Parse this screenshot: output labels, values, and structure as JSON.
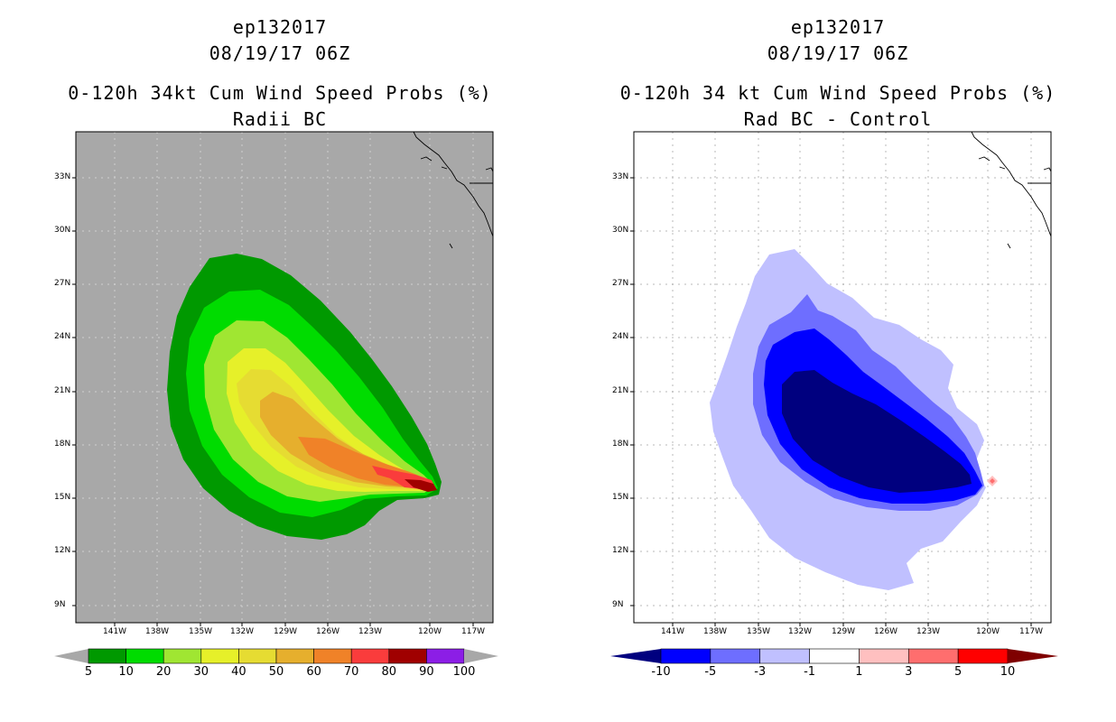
{
  "chart_data": [
    {
      "type": "heatmap",
      "panel": "left",
      "title_lines": [
        "ep132017",
        "08/19/17 06Z",
        "0-120h 34kt Cum Wind Speed Probs (%)",
        "Radii BC"
      ],
      "xticks": [
        "141W",
        "138W",
        "135W",
        "132W",
        "129W",
        "126W",
        "123W",
        "120W",
        "117W"
      ],
      "yticks": [
        "33N",
        "30N",
        "27N",
        "24N",
        "21N",
        "18N",
        "15N",
        "12N",
        "9N"
      ],
      "background_color": "#a8a8a8",
      "colorbar": {
        "levels": [
          "5",
          "10",
          "20",
          "30",
          "40",
          "50",
          "60",
          "70",
          "80",
          "90",
          "100"
        ],
        "colors": [
          "#009900",
          "#00dc00",
          "#a0e632",
          "#e6f029",
          "#e6dc32",
          "#e6af2d",
          "#f08228",
          "#fa3c3c",
          "#a00000",
          "#8c1ee6"
        ]
      },
      "contours": [
        {
          "level": 5,
          "color": "#009900"
        },
        {
          "level": 10,
          "color": "#00dc00"
        },
        {
          "level": 20,
          "color": "#a0e632"
        },
        {
          "level": 30,
          "color": "#e6f029"
        },
        {
          "level": 40,
          "color": "#e6dc32"
        },
        {
          "level": 50,
          "color": "#e6af2d"
        },
        {
          "level": 60,
          "color": "#f08228"
        },
        {
          "level": 70,
          "color": "#fa3c3c"
        },
        {
          "level": 80,
          "color": "#a00000"
        }
      ]
    },
    {
      "type": "heatmap",
      "panel": "right",
      "title_lines": [
        "ep132017",
        "08/19/17 06Z",
        "0-120h 34 kt Cum Wind Speed Probs (%)",
        "Rad BC - Control"
      ],
      "xticks": [
        "141W",
        "138W",
        "135W",
        "132W",
        "129W",
        "126W",
        "123W",
        "120W",
        "117W"
      ],
      "yticks": [
        "33N",
        "30N",
        "27N",
        "24N",
        "21N",
        "18N",
        "15N",
        "12N",
        "9N"
      ],
      "background_color": "#ffffff",
      "colorbar": {
        "levels": [
          "-10",
          "-5",
          "-3",
          "-1",
          "1",
          "3",
          "5",
          "10"
        ],
        "colors": [
          "#00007f",
          "#0000ff",
          "#6e6eff",
          "#c0c0ff",
          "#ffffff",
          "#ffc0c0",
          "#ff6e6e",
          "#ff0000",
          "#7f0000"
        ]
      },
      "contours": [
        {
          "level": -1,
          "color": "#c0c0ff"
        },
        {
          "level": -3,
          "color": "#6e6eff"
        },
        {
          "level": -5,
          "color": "#0000ff"
        },
        {
          "level": -10,
          "color": "#00007f"
        },
        {
          "level": 1,
          "color": "#ffc0c0"
        },
        {
          "level": 3,
          "color": "#ff6e6e"
        }
      ]
    }
  ]
}
